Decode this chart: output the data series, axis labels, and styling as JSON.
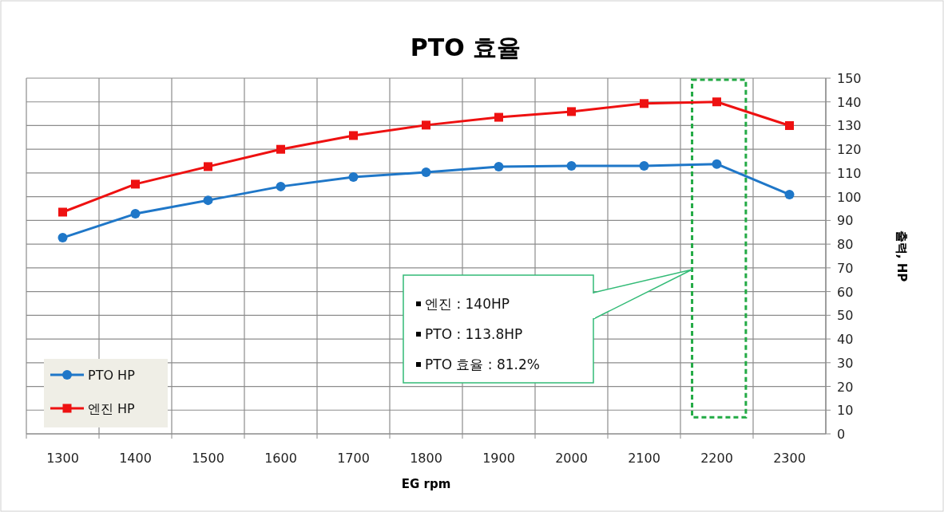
{
  "chart_data": {
    "type": "line",
    "title": "PTO 효율",
    "xlabel": "EG rpm",
    "ylabel": "출력, HP",
    "categories": [
      "1300",
      "1400",
      "1500",
      "1600",
      "1700",
      "1800",
      "1900",
      "2000",
      "2100",
      "2200",
      "2300"
    ],
    "series": [
      {
        "name": "PTO HP",
        "color": "#1f77c8",
        "marker": "circle",
        "values": [
          82.7,
          92.8,
          98.5,
          104.3,
          108.3,
          110.3,
          112.7,
          113,
          113,
          113.8,
          100.9
        ]
      },
      {
        "name": "엔진 HP",
        "color": "#ee1111",
        "marker": "square",
        "values": [
          93.5,
          105.3,
          112.7,
          120,
          125.8,
          130.2,
          133.5,
          135.9,
          139.3,
          140,
          130
        ]
      }
    ],
    "ylim": [
      0,
      150
    ],
    "yticks": [
      0,
      10,
      20,
      30,
      40,
      50,
      60,
      70,
      80,
      90,
      100,
      110,
      120,
      130,
      140,
      150
    ],
    "grid": true,
    "legend": "bottom left",
    "line_style": "solid",
    "annotations": [
      "엔진 : 140HP",
      "PTO : 113.8HP",
      "PTO 효율 : 81.2%"
    ]
  }
}
